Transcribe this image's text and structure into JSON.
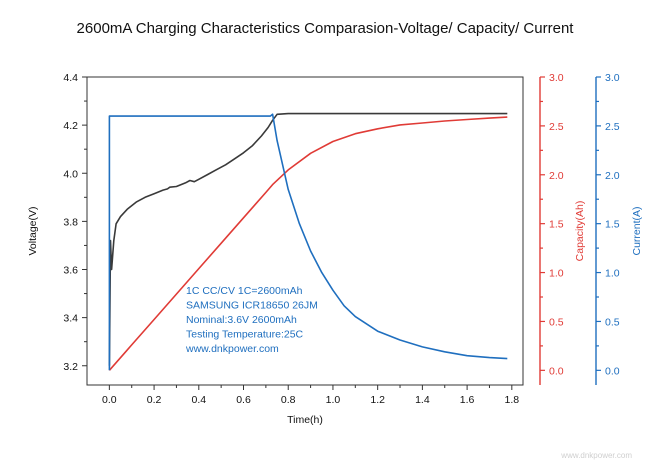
{
  "title": "2600mA Charging Characteristics Comparasion-Voltage/ Capacity/ Current",
  "watermark": "www.dnkpower.com",
  "colors": {
    "voltage": "#3a3a3a",
    "capacity": "#e03b36",
    "current": "#1f6fbf",
    "axis": "#333333"
  },
  "chart_data": {
    "type": "line",
    "title": "2600mA Charging Characteristics Comparasion-Voltage/ Capacity/ Current",
    "xlabel": "Time(h)",
    "xlim": [
      -0.1,
      1.85
    ],
    "xticks": [
      "0.0",
      "0.2",
      "0.4",
      "0.6",
      "0.8",
      "1.0",
      "1.2",
      "1.4",
      "1.6",
      "1.8"
    ],
    "y_axes": [
      {
        "id": "voltage",
        "label": "Voltage(V)",
        "side": "left",
        "ylim": [
          3.12,
          4.4
        ],
        "ticks": [
          "3.2",
          "3.4",
          "3.6",
          "3.8",
          "4.0",
          "4.2",
          "4.4"
        ]
      },
      {
        "id": "capacity",
        "label": "Capacity(Ah)",
        "side": "right",
        "ylim": [
          -0.15,
          3.0
        ],
        "ticks": [
          "0.0",
          "0.5",
          "1.0",
          "1.5",
          "2.0",
          "2.5",
          "3.0"
        ]
      },
      {
        "id": "current",
        "label": "Current(A)",
        "side": "right",
        "ylim": [
          -0.15,
          3.0
        ],
        "ticks": [
          "0.0",
          "0.5",
          "1.0",
          "1.5",
          "2.0",
          "2.5",
          "3.0"
        ]
      }
    ],
    "series": [
      {
        "axis": "voltage",
        "x": [
          0.0,
          0.005,
          0.01,
          0.02,
          0.03,
          0.05,
          0.08,
          0.12,
          0.16,
          0.2,
          0.24,
          0.26,
          0.27,
          0.3,
          0.34,
          0.36,
          0.38,
          0.4,
          0.44,
          0.48,
          0.52,
          0.56,
          0.6,
          0.64,
          0.68,
          0.71,
          0.73,
          0.75,
          0.8,
          1.0,
          1.2,
          1.4,
          1.6,
          1.78
        ],
        "y": [
          3.2,
          3.72,
          3.6,
          3.72,
          3.79,
          3.82,
          3.85,
          3.88,
          3.9,
          3.915,
          3.93,
          3.935,
          3.942,
          3.945,
          3.96,
          3.97,
          3.965,
          3.975,
          3.995,
          4.015,
          4.035,
          4.06,
          4.085,
          4.115,
          4.155,
          4.19,
          4.22,
          4.245,
          4.248,
          4.248,
          4.248,
          4.248,
          4.248,
          4.248
        ]
      },
      {
        "axis": "capacity",
        "x": [
          0.0,
          0.1,
          0.2,
          0.3,
          0.4,
          0.5,
          0.6,
          0.7,
          0.73,
          0.8,
          0.9,
          1.0,
          1.1,
          1.2,
          1.3,
          1.4,
          1.5,
          1.6,
          1.7,
          1.78
        ],
        "y": [
          0.0,
          0.26,
          0.52,
          0.78,
          1.04,
          1.3,
          1.56,
          1.82,
          1.9,
          2.05,
          2.22,
          2.34,
          2.42,
          2.47,
          2.51,
          2.53,
          2.55,
          2.565,
          2.58,
          2.59
        ]
      },
      {
        "axis": "current",
        "x": [
          0.0,
          0.0,
          0.01,
          0.72,
          0.73,
          0.75,
          0.8,
          0.85,
          0.9,
          0.95,
          1.0,
          1.05,
          1.1,
          1.2,
          1.3,
          1.4,
          1.5,
          1.6,
          1.7,
          1.78
        ],
        "y": [
          0.0,
          2.6,
          2.6,
          2.6,
          2.62,
          2.35,
          1.85,
          1.5,
          1.22,
          1.0,
          0.82,
          0.66,
          0.55,
          0.4,
          0.31,
          0.24,
          0.19,
          0.15,
          0.13,
          0.12
        ]
      }
    ],
    "annotations": [
      "1C CC/CV   1C=2600mAh",
      "SAMSUNG ICR18650 26JM",
      "Nominal:3.6V 2600mAh",
      "Testing Temperature:25C",
      "www.dnkpower.com"
    ]
  }
}
